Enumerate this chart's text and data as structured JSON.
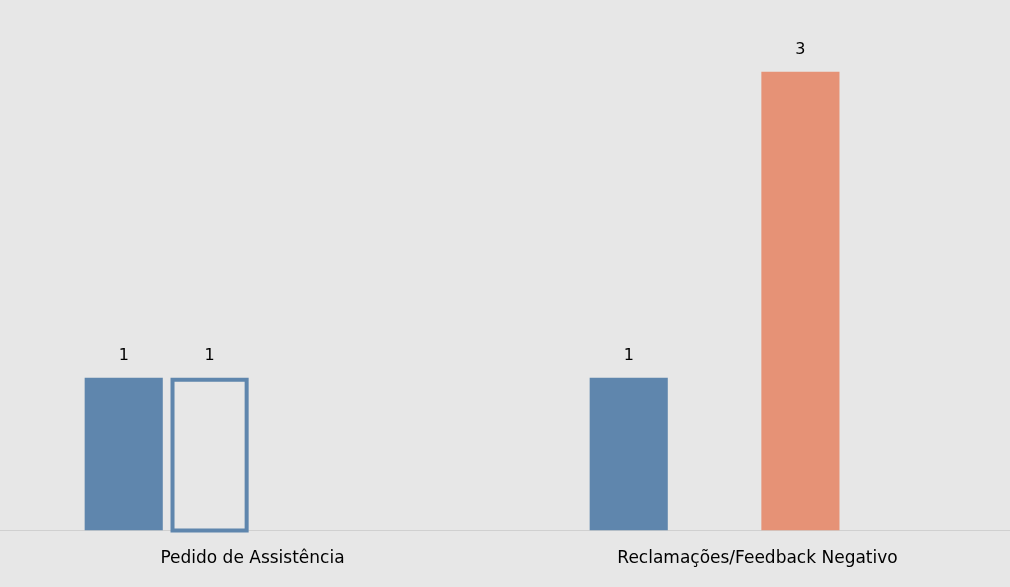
{
  "chart_data": {
    "type": "bar",
    "categories": [
      "Pedido de Assistência",
      "Reclamações/Feedback Negativo"
    ],
    "series": [
      {
        "color": "#5f86ad",
        "values": [
          1,
          1
        ]
      },
      {
        "color": "#5f86ad",
        "line_style": "solid",
        "values": [
          1,
          null
        ]
      },
      {
        "color": "#e69276",
        "values": [
          null,
          3
        ]
      },
      {
        "color": "#5f86ad",
        "values": [
          null,
          null
        ]
      }
    ],
    "ylim": [
      0,
      3.47
    ],
    "data_labels": true,
    "grid": false,
    "legend": false
  }
}
